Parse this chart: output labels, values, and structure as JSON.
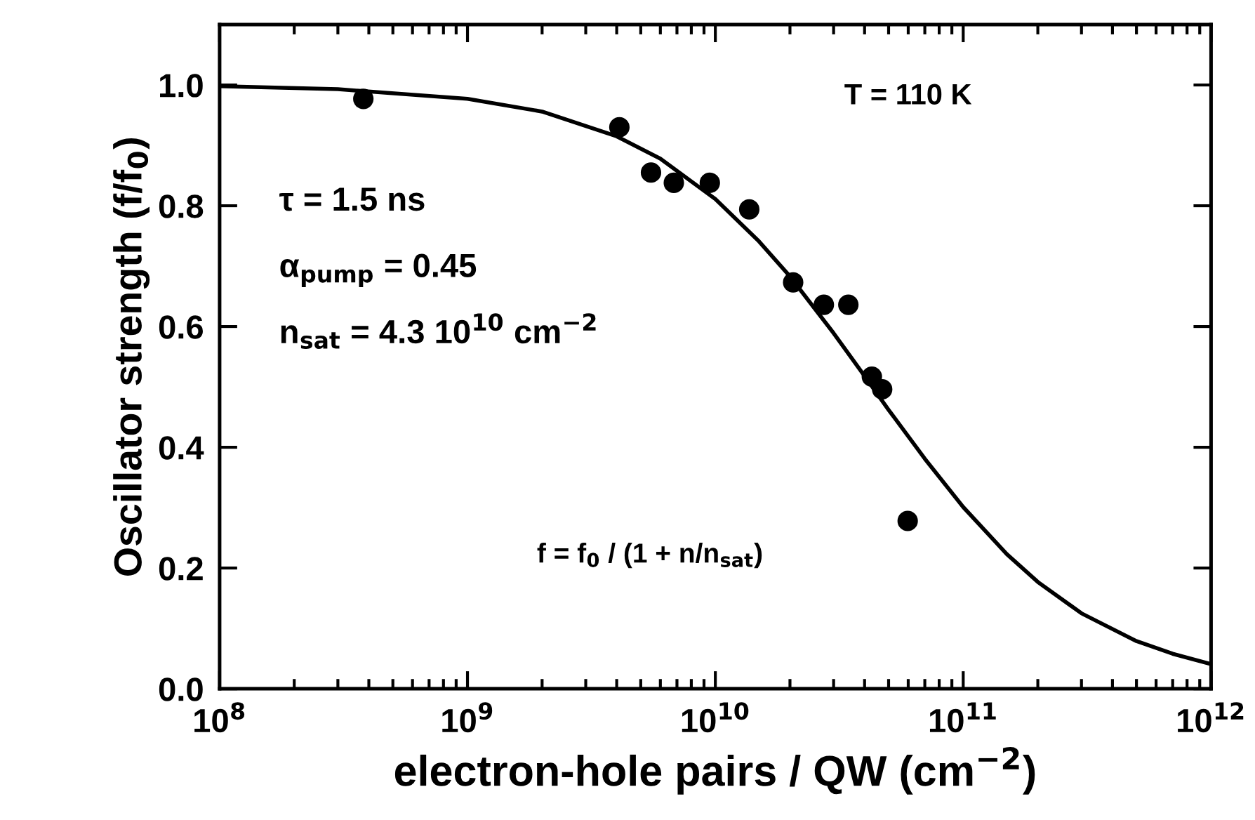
{
  "chart_data": {
    "type": "scatter",
    "xlabel": "electron-hole pairs / QW (cm$^{−2}$)",
    "ylabel": "Oscillator strength (f/f$_{0}$)",
    "log": "x",
    "xlim": [
      100000000.0,
      1000000000000.0
    ],
    "xticks": [
      {
        "value": 100000000.0,
        "label": "10$^{8}$"
      },
      {
        "value": 1000000000.0,
        "label": "10$^{9}$"
      },
      {
        "value": 10000000000.0,
        "label": "10$^{10}$"
      },
      {
        "value": 100000000000.0,
        "label": "10$^{11}$"
      },
      {
        "value": 1000000000000.0,
        "label": "10$^{12}$"
      }
    ],
    "ylim": [
      0,
      1.1
    ],
    "yticks": [
      {
        "value": 0,
        "label": "0.0"
      },
      {
        "value": 0.2,
        "label": "0.2"
      },
      {
        "value": 0.4,
        "label": "0.4"
      },
      {
        "value": 0.6,
        "label": "0.6"
      },
      {
        "value": 0.8,
        "label": "0.8"
      },
      {
        "value": 1.0,
        "label": "1.0"
      }
    ],
    "grid": false,
    "legend": false,
    "series": [
      {
        "type": "line",
        "color": "#000000",
        "marker": "none",
        "line_style": "solid",
        "x": [
          100000000.0,
          300000000.0,
          1000000000.0,
          2000000000.0,
          4000000000.0,
          6000000000.0,
          10000000000.0,
          15000000000.0,
          20000000000.0,
          30000000000.0,
          40000000000.0,
          50000000000.0,
          70000000000.0,
          100000000000.0,
          150000000000.0,
          200000000000.0,
          300000000000.0,
          500000000000.0,
          700000000000.0,
          1000000000000.0
        ],
        "values": [
          0.998,
          0.993,
          0.977,
          0.956,
          0.915,
          0.878,
          0.811,
          0.741,
          0.683,
          0.589,
          0.518,
          0.462,
          0.381,
          0.301,
          0.223,
          0.177,
          0.125,
          0.079,
          0.058,
          0.041
        ]
      },
      {
        "color": "#000000",
        "marker": "circle",
        "x": [
          380000000.0,
          4100000000.0,
          5500000000.0,
          6800000000.0,
          9500000000.0,
          13700000000.0,
          20600000000.0,
          27400000000.0,
          34400000000.0,
          42800000000.0,
          47100000000.0,
          59700000000.0
        ],
        "values": [
          0.977,
          0.93,
          0.855,
          0.838,
          0.838,
          0.794,
          0.673,
          0.636,
          0.636,
          0.517,
          0.496,
          0.278
        ]
      }
    ],
    "annotations": [
      "T = 110 K",
      "τ = 1.5 ns",
      "α$_{pump}$ = 0.45",
      "n$_{sat}$ = 4.3 10$^{10}$ cm$^{−2}$",
      "f = f$_{0}$ / (1 + n/n$_{sat}$)"
    ]
  }
}
